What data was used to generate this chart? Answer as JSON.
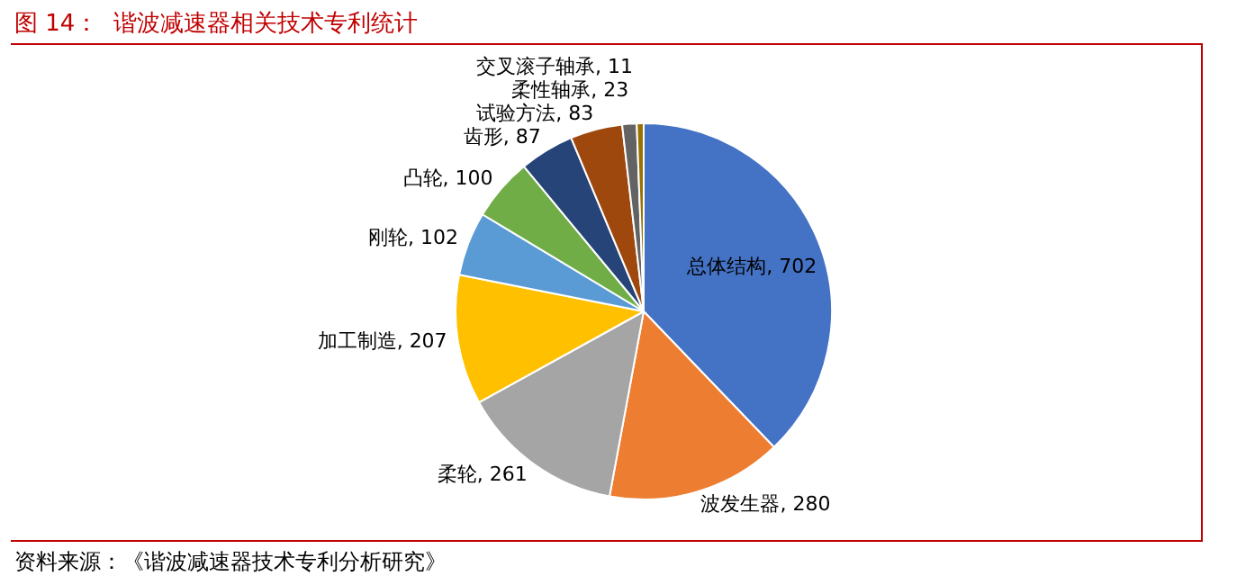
{
  "chart_data": {
    "type": "pie",
    "title": "图 14：  谐波减速器相关技术专利统计",
    "categories": [
      "总体结构",
      "波发生器",
      "柔轮",
      "加工制造",
      "刚轮",
      "凸轮",
      "齿形",
      "试验方法",
      "柔性轴承",
      "交叉滚子轴承"
    ],
    "values": [
      702,
      280,
      261,
      207,
      102,
      100,
      87,
      83,
      23,
      11
    ],
    "colors": [
      "#4472c4",
      "#ed7d31",
      "#a5a5a5",
      "#ffc000",
      "#5b9bd5",
      "#70ad47",
      "#264478",
      "#9e480e",
      "#636363",
      "#997300"
    ],
    "data_labels": true,
    "value_labels": [
      ", 702",
      ", 280",
      ", 261",
      ", 207",
      ", 102",
      ", 100",
      ", 87",
      ", 83",
      ", 23",
      ", 11"
    ],
    "legend": false,
    "annotations": [
      "资料来源：《谐波减速器技术专利分析研究》"
    ]
  }
}
